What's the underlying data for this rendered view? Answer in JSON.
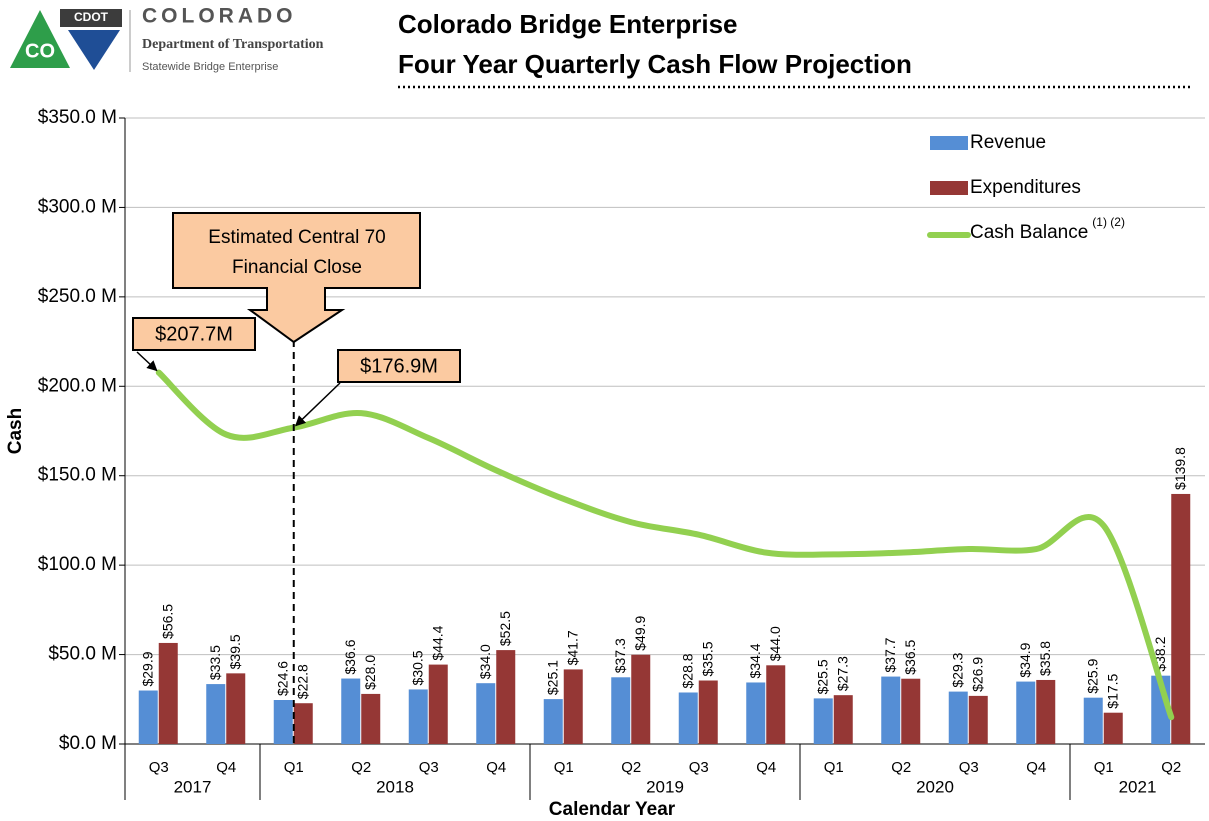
{
  "logo": {
    "badge": "CDOT",
    "state_mark": "CO",
    "name": "COLORADO",
    "department": "Department of Transportation",
    "unit": "Statewide Bridge Enterprise"
  },
  "chart_data": {
    "type": "bar",
    "title": [
      "Colorado Bridge Enterprise",
      "Four Year Quarterly Cash Flow Projection"
    ],
    "y_label": "Cash",
    "x_label": "Calendar Year",
    "groups": [
      {
        "label": "2017",
        "quarters": [
          "Q3",
          "Q4"
        ]
      },
      {
        "label": "2018",
        "quarters": [
          "Q1",
          "Q2",
          "Q3",
          "Q4"
        ]
      },
      {
        "label": "2019",
        "quarters": [
          "Q1",
          "Q2",
          "Q3",
          "Q4"
        ]
      },
      {
        "label": "2020",
        "quarters": [
          "Q1",
          "Q2",
          "Q3",
          "Q4"
        ]
      },
      {
        "label": "2021",
        "quarters": [
          "Q1",
          "Q2"
        ]
      }
    ],
    "series": [
      {
        "name": "Revenue",
        "color": "#558ed5",
        "values": [
          29.9,
          33.5,
          24.6,
          36.6,
          30.5,
          34.0,
          25.1,
          37.3,
          28.8,
          34.4,
          25.5,
          37.7,
          29.3,
          34.9,
          25.9,
          38.2
        ],
        "value_labels": [
          "$29.9",
          "$33.5",
          "$24.6",
          "$36.6",
          "$30.5",
          "$34.0",
          "$25.1",
          "$37.3",
          "$28.8",
          "$34.4",
          "$25.5",
          "$37.7",
          "$29.3",
          "$34.9",
          "$25.9",
          "$38.2"
        ]
      },
      {
        "name": "Expenditures",
        "color": "#953735",
        "values": [
          56.5,
          39.5,
          22.8,
          28.0,
          44.4,
          52.5,
          41.7,
          49.9,
          35.5,
          44.0,
          27.3,
          36.5,
          26.9,
          35.8,
          17.5,
          139.8
        ],
        "value_labels": [
          "$56.5",
          "$39.5",
          "$22.8",
          "$28.0",
          "$44.4",
          "$52.5",
          "$41.7",
          "$49.9",
          "$35.5",
          "$44.0",
          "$27.3",
          "$36.5",
          "$26.9",
          "$35.8",
          "$17.5",
          "$139.8"
        ]
      },
      {
        "name": "Cash Balance",
        "type": "line",
        "color": "#92d050",
        "note": "(1) (2)",
        "values": [
          207.7,
          173,
          176.9,
          185,
          171,
          153,
          137,
          124,
          117,
          107,
          106,
          107,
          109,
          109,
          122,
          15
        ]
      }
    ],
    "ylim": [
      0,
      350
    ],
    "yticks": [
      {
        "value": 0,
        "label": "$0.0 M"
      },
      {
        "value": 50,
        "label": "$50.0 M"
      },
      {
        "value": 100,
        "label": "$100.0 M"
      },
      {
        "value": 150,
        "label": "$150.0 M"
      },
      {
        "value": 200,
        "label": "$200.0 M"
      },
      {
        "value": 250,
        "label": "$250.0 M"
      },
      {
        "value": 300,
        "label": "$300.0 M"
      },
      {
        "value": 350,
        "label": "$350.0 M"
      }
    ],
    "grid": true,
    "annotations": [
      {
        "text": "Estimated Central 70 Financial Close"
      },
      {
        "text": "$207.7M"
      },
      {
        "text": "$176.9M"
      }
    ]
  }
}
